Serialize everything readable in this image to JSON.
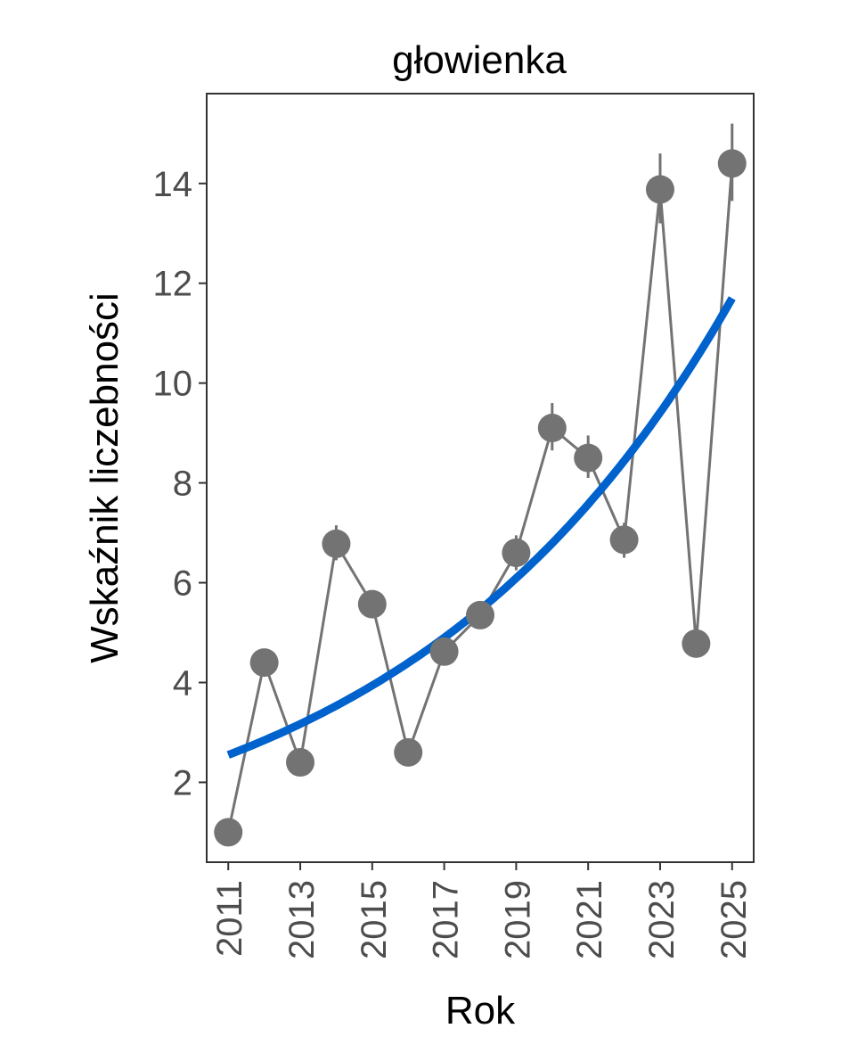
{
  "chart_data": {
    "type": "line",
    "title": "głowienka",
    "xlabel": "Rok",
    "ylabel": "Wskaźnik liczebności",
    "xlim": [
      2010.4,
      2025.6
    ],
    "ylim": [
      0.4,
      15.8
    ],
    "x_ticks": [
      2011,
      2013,
      2015,
      2017,
      2019,
      2021,
      2023,
      2025
    ],
    "x_tick_labels": [
      "2011",
      "2013",
      "2015",
      "2017",
      "2019",
      "2021",
      "2023",
      "2025"
    ],
    "y_ticks": [
      2,
      4,
      6,
      8,
      10,
      12,
      14
    ],
    "y_tick_labels": [
      "2",
      "4",
      "6",
      "8",
      "10",
      "12",
      "14"
    ],
    "grid": false,
    "series": [
      {
        "kind": "observed",
        "x": [
          2011,
          2012,
          2013,
          2014,
          2015,
          2016,
          2017,
          2018,
          2019,
          2020,
          2021,
          2022,
          2023,
          2024,
          2025
        ],
        "y": [
          1.0,
          4.4,
          2.4,
          6.78,
          5.57,
          2.6,
          4.62,
          5.35,
          6.6,
          9.1,
          8.5,
          6.86,
          13.88,
          4.78,
          14.4
        ],
        "err_low": [
          1.0,
          4.4,
          2.4,
          6.45,
          5.57,
          2.6,
          4.62,
          5.35,
          6.25,
          8.65,
          8.1,
          6.5,
          13.2,
          4.78,
          13.65
        ],
        "err_high": [
          1.0,
          4.4,
          2.4,
          7.15,
          5.57,
          2.6,
          4.62,
          5.35,
          6.95,
          9.6,
          8.95,
          7.2,
          14.6,
          4.78,
          15.2
        ],
        "color": "#737373"
      },
      {
        "kind": "trend",
        "x": [
          2011,
          2025
        ],
        "y": [
          2.55,
          11.7
        ],
        "color": "#0062cc"
      }
    ]
  }
}
